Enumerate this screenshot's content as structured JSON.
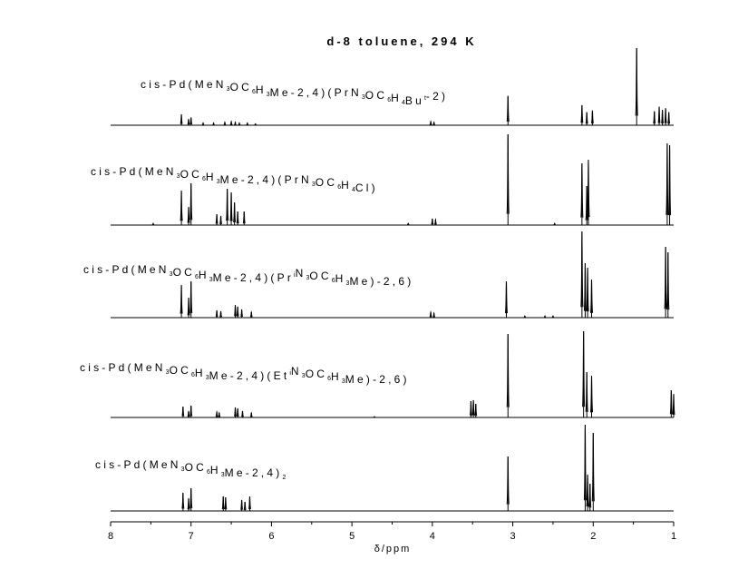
{
  "chart_data": {
    "type": "line",
    "title": "d-8 toluene, 294 K",
    "xlabel": "δ/ppm",
    "ylabel": "",
    "xlim": [
      8,
      1
    ],
    "x_reversed": true,
    "xticks": [
      "8",
      "7",
      "6",
      "5",
      "4",
      "3",
      "2",
      "1"
    ],
    "grid": false,
    "legend": "none",
    "line_color": "#000000",
    "series": [
      {
        "label_parts": [
          {
            "t": "cis-Pd(MeN"
          },
          {
            "t": "3",
            "s": "sub"
          },
          {
            "t": "OC"
          },
          {
            "t": "6",
            "s": "sub"
          },
          {
            "t": "H"
          },
          {
            "t": "3",
            "s": "sub"
          },
          {
            "t": "Me-2,4)(PrN"
          },
          {
            "t": "3",
            "s": "sub"
          },
          {
            "t": "OC"
          },
          {
            "t": "6",
            "s": "sub"
          },
          {
            "t": "H"
          },
          {
            "t": "4",
            "s": "sub"
          },
          {
            "t": "Bu"
          },
          {
            "t": "t",
            "s": "sup"
          },
          {
            "t": "-2)"
          }
        ],
        "peaks": [
          {
            "x": 7.12,
            "h": 0.14
          },
          {
            "x": 7.03,
            "h": 0.08
          },
          {
            "x": 7.0,
            "h": 0.1
          },
          {
            "x": 6.85,
            "h": 0.03
          },
          {
            "x": 6.72,
            "h": 0.03
          },
          {
            "x": 6.58,
            "h": 0.04
          },
          {
            "x": 6.5,
            "h": 0.05
          },
          {
            "x": 6.45,
            "h": 0.04
          },
          {
            "x": 6.4,
            "h": 0.03
          },
          {
            "x": 6.3,
            "h": 0.03
          },
          {
            "x": 6.2,
            "h": 0.02
          },
          {
            "x": 4.02,
            "h": 0.05
          },
          {
            "x": 3.98,
            "h": 0.04
          },
          {
            "x": 3.06,
            "h": 0.38
          },
          {
            "x": 2.14,
            "h": 0.26
          },
          {
            "x": 2.08,
            "h": 0.17
          },
          {
            "x": 2.01,
            "h": 0.19
          },
          {
            "x": 1.46,
            "h": 1.0
          },
          {
            "x": 1.24,
            "h": 0.18
          },
          {
            "x": 1.18,
            "h": 0.24
          },
          {
            "x": 1.14,
            "h": 0.2
          },
          {
            "x": 1.1,
            "h": 0.22
          },
          {
            "x": 1.06,
            "h": 0.17
          }
        ]
      },
      {
        "label_parts": [
          {
            "t": "cis-Pd(MeN"
          },
          {
            "t": "3",
            "s": "sub"
          },
          {
            "t": "OC"
          },
          {
            "t": "6",
            "s": "sub"
          },
          {
            "t": "H"
          },
          {
            "t": "3",
            "s": "sub"
          },
          {
            "t": "Me-2,4)(PrN"
          },
          {
            "t": "3",
            "s": "sub"
          },
          {
            "t": "OC"
          },
          {
            "t": "6",
            "s": "sub"
          },
          {
            "t": "H"
          },
          {
            "t": "4",
            "s": "sub"
          },
          {
            "t": "Cl)"
          }
        ],
        "peaks": [
          {
            "x": 7.47,
            "h": 0.02
          },
          {
            "x": 7.12,
            "h": 0.38
          },
          {
            "x": 7.03,
            "h": 0.2
          },
          {
            "x": 7.0,
            "h": 0.46
          },
          {
            "x": 6.68,
            "h": 0.12
          },
          {
            "x": 6.63,
            "h": 0.1
          },
          {
            "x": 6.55,
            "h": 0.4
          },
          {
            "x": 6.5,
            "h": 0.36
          },
          {
            "x": 6.46,
            "h": 0.25
          },
          {
            "x": 6.42,
            "h": 0.15
          },
          {
            "x": 6.34,
            "h": 0.15
          },
          {
            "x": 4.3,
            "h": 0.02
          },
          {
            "x": 4.0,
            "h": 0.07
          },
          {
            "x": 3.96,
            "h": 0.06
          },
          {
            "x": 3.06,
            "h": 1.0
          },
          {
            "x": 2.48,
            "h": 0.02
          },
          {
            "x": 2.14,
            "h": 0.68
          },
          {
            "x": 2.08,
            "h": 0.43
          },
          {
            "x": 2.06,
            "h": 0.72
          },
          {
            "x": 1.08,
            "h": 0.9
          },
          {
            "x": 1.05,
            "h": 0.88
          }
        ]
      },
      {
        "label_parts": [
          {
            "t": "cis-Pd(MeN"
          },
          {
            "t": "3",
            "s": "sub"
          },
          {
            "t": "OC"
          },
          {
            "t": "6",
            "s": "sub"
          },
          {
            "t": "H"
          },
          {
            "t": "3",
            "s": "sub"
          },
          {
            "t": "Me-2,4)(Pr"
          },
          {
            "t": "i",
            "s": "sup"
          },
          {
            "t": "N"
          },
          {
            "t": "3",
            "s": "sub"
          },
          {
            "t": "OC"
          },
          {
            "t": "6",
            "s": "sub"
          },
          {
            "t": "H"
          },
          {
            "t": "3",
            "s": "sub"
          },
          {
            "t": "Me)-2,6)"
          }
        ],
        "peaks": [
          {
            "x": 7.12,
            "h": 0.36
          },
          {
            "x": 7.03,
            "h": 0.22
          },
          {
            "x": 7.0,
            "h": 0.4
          },
          {
            "x": 6.68,
            "h": 0.08
          },
          {
            "x": 6.63,
            "h": 0.07
          },
          {
            "x": 6.45,
            "h": 0.14
          },
          {
            "x": 6.42,
            "h": 0.12
          },
          {
            "x": 6.37,
            "h": 0.09
          },
          {
            "x": 6.25,
            "h": 0.06
          },
          {
            "x": 4.02,
            "h": 0.06
          },
          {
            "x": 3.98,
            "h": 0.05
          },
          {
            "x": 3.08,
            "h": 0.4
          },
          {
            "x": 2.85,
            "h": 0.02
          },
          {
            "x": 2.6,
            "h": 0.02
          },
          {
            "x": 2.5,
            "h": 0.02
          },
          {
            "x": 2.14,
            "h": 0.95
          },
          {
            "x": 2.1,
            "h": 0.6
          },
          {
            "x": 2.07,
            "h": 0.55
          },
          {
            "x": 2.02,
            "h": 0.42
          },
          {
            "x": 1.1,
            "h": 0.78
          },
          {
            "x": 1.07,
            "h": 0.72
          }
        ]
      },
      {
        "label_parts": [
          {
            "t": "cis-Pd(MeN"
          },
          {
            "t": "3",
            "s": "sub"
          },
          {
            "t": "OC"
          },
          {
            "t": "6",
            "s": "sub"
          },
          {
            "t": "H"
          },
          {
            "t": "3",
            "s": "sub"
          },
          {
            "t": "Me-2,4)(Et"
          },
          {
            "t": "i",
            "s": "sup"
          },
          {
            "t": "N"
          },
          {
            "t": "3",
            "s": "sub"
          },
          {
            "t": "OC"
          },
          {
            "t": "6",
            "s": "sub"
          },
          {
            "t": "H"
          },
          {
            "t": "3",
            "s": "sub"
          },
          {
            "t": "Me)-2,6)"
          }
        ],
        "peaks": [
          {
            "x": 7.1,
            "h": 0.12
          },
          {
            "x": 7.03,
            "h": 0.07
          },
          {
            "x": 7.0,
            "h": 0.13
          },
          {
            "x": 6.68,
            "h": 0.06
          },
          {
            "x": 6.65,
            "h": 0.05
          },
          {
            "x": 6.45,
            "h": 0.11
          },
          {
            "x": 6.42,
            "h": 0.1
          },
          {
            "x": 6.36,
            "h": 0.07
          },
          {
            "x": 6.25,
            "h": 0.05
          },
          {
            "x": 4.72,
            "h": 0.01
          },
          {
            "x": 3.52,
            "h": 0.18
          },
          {
            "x": 3.49,
            "h": 0.19
          },
          {
            "x": 3.46,
            "h": 0.15
          },
          {
            "x": 3.06,
            "h": 0.92
          },
          {
            "x": 2.12,
            "h": 0.95
          },
          {
            "x": 2.08,
            "h": 0.5
          },
          {
            "x": 2.02,
            "h": 0.46
          },
          {
            "x": 1.03,
            "h": 0.3
          },
          {
            "x": 1.0,
            "h": 0.26
          }
        ]
      },
      {
        "label_parts": [
          {
            "t": "cis-Pd(MeN"
          },
          {
            "t": "3",
            "s": "sub"
          },
          {
            "t": "OC"
          },
          {
            "t": "6",
            "s": "sub"
          },
          {
            "t": "H"
          },
          {
            "t": "3",
            "s": "sub"
          },
          {
            "t": "Me-2,4)"
          },
          {
            "t": "2",
            "s": "sub"
          }
        ],
        "peaks": [
          {
            "x": 7.1,
            "h": 0.2
          },
          {
            "x": 7.03,
            "h": 0.14
          },
          {
            "x": 7.0,
            "h": 0.25
          },
          {
            "x": 6.6,
            "h": 0.16
          },
          {
            "x": 6.57,
            "h": 0.15
          },
          {
            "x": 6.37,
            "h": 0.12
          },
          {
            "x": 6.33,
            "h": 0.1
          },
          {
            "x": 6.27,
            "h": 0.16
          },
          {
            "x": 3.06,
            "h": 0.6
          },
          {
            "x": 2.1,
            "h": 0.95
          },
          {
            "x": 2.07,
            "h": 0.4
          },
          {
            "x": 2.04,
            "h": 0.3
          },
          {
            "x": 2.0,
            "h": 0.86
          }
        ]
      }
    ]
  }
}
